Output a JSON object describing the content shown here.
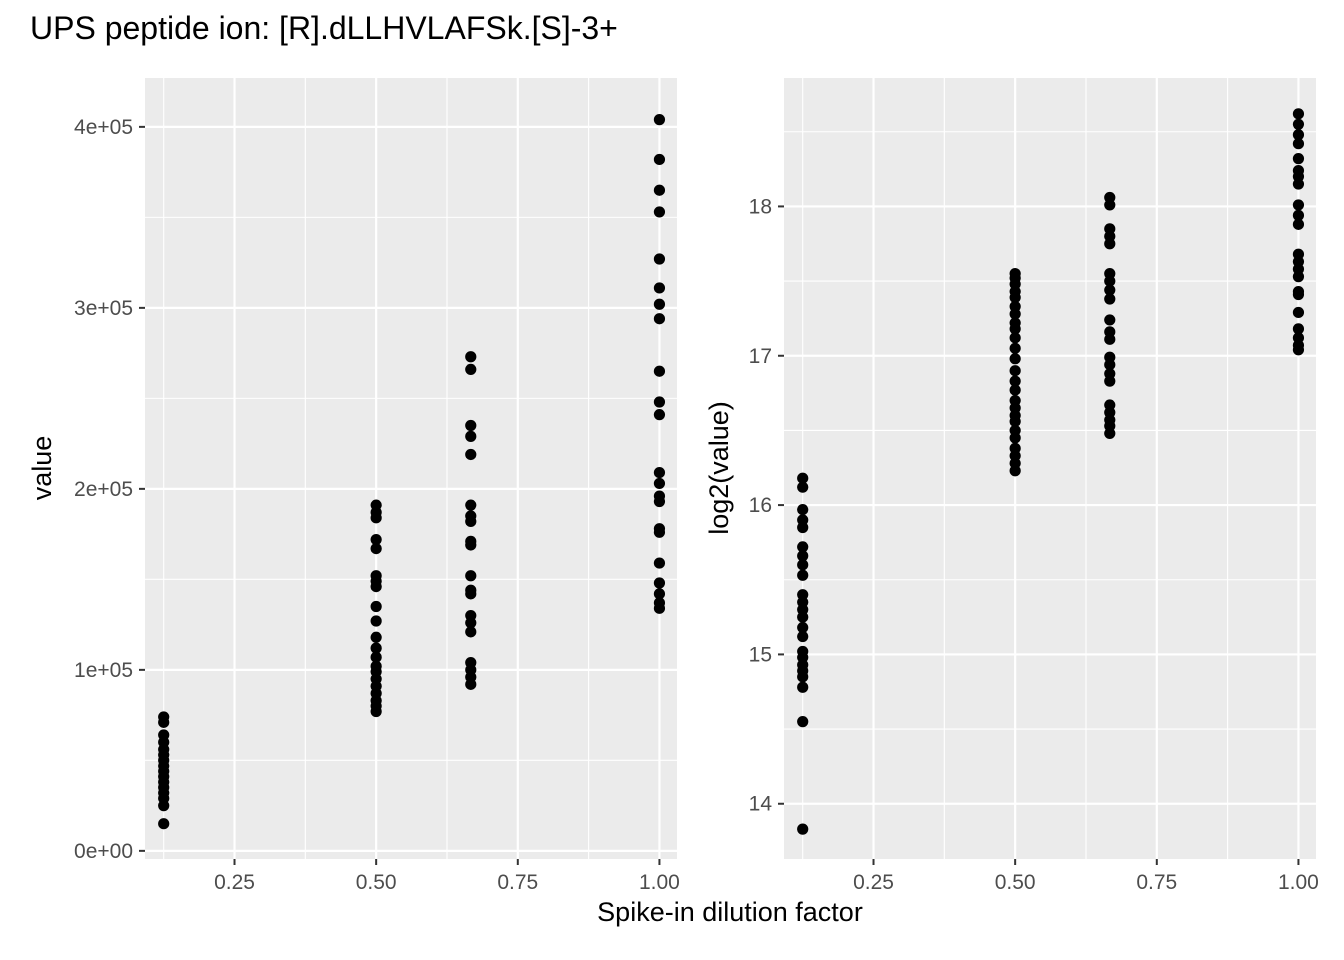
{
  "title": "UPS peptide ion: [R].dLLHVLAFSk.[S]-3+",
  "xlabel": "Spike-in dilution factor",
  "colors": {
    "panel": "#ebebeb",
    "grid": "#ffffff",
    "point": "#000000",
    "tick_text": "#4d4d4d"
  },
  "chart_data": [
    {
      "type": "scatter",
      "title": "",
      "xlabel": "Spike-in dilution factor",
      "ylabel": "value",
      "xlim": [
        0.092,
        1.031
      ],
      "ylim": [
        -4500,
        427000
      ],
      "x_ticks": [
        0.25,
        0.5,
        0.75,
        1.0
      ],
      "x_tick_labels": [
        "0.25",
        "0.50",
        "0.75",
        "1.00"
      ],
      "y_ticks": [
        0,
        100000,
        200000,
        300000,
        400000
      ],
      "y_tick_labels": [
        "0e+00",
        "1e+05",
        "2e+05",
        "3e+05",
        "4e+05"
      ],
      "grid": true,
      "series": [
        {
          "values": [
            [
              0.125,
              74000
            ],
            [
              0.125,
              71000
            ],
            [
              0.125,
              64000
            ],
            [
              0.125,
              60000
            ],
            [
              0.125,
              56000
            ],
            [
              0.125,
              53000
            ],
            [
              0.125,
              50000
            ],
            [
              0.125,
              47000
            ],
            [
              0.125,
              44000
            ],
            [
              0.125,
              41000
            ],
            [
              0.125,
              38000
            ],
            [
              0.125,
              35000
            ],
            [
              0.125,
              32000
            ],
            [
              0.125,
              29000
            ],
            [
              0.125,
              25000
            ],
            [
              0.125,
              15000
            ],
            [
              0.5,
              191000
            ],
            [
              0.5,
              187000
            ],
            [
              0.5,
              184000
            ],
            [
              0.5,
              172000
            ],
            [
              0.5,
              167000
            ],
            [
              0.5,
              152000
            ],
            [
              0.5,
              149000
            ],
            [
              0.5,
              146000
            ],
            [
              0.5,
              135000
            ],
            [
              0.5,
              127000
            ],
            [
              0.5,
              118000
            ],
            [
              0.5,
              112000
            ],
            [
              0.5,
              107000
            ],
            [
              0.5,
              102000
            ],
            [
              0.5,
              99000
            ],
            [
              0.5,
              95000
            ],
            [
              0.5,
              91000
            ],
            [
              0.5,
              87000
            ],
            [
              0.5,
              83000
            ],
            [
              0.5,
              80000
            ],
            [
              0.5,
              77000
            ],
            [
              0.667,
              273000
            ],
            [
              0.667,
              266000
            ],
            [
              0.667,
              235000
            ],
            [
              0.667,
              229000
            ],
            [
              0.667,
              219000
            ],
            [
              0.667,
              191000
            ],
            [
              0.667,
              185000
            ],
            [
              0.667,
              182000
            ],
            [
              0.667,
              171000
            ],
            [
              0.667,
              169000
            ],
            [
              0.667,
              152000
            ],
            [
              0.667,
              144000
            ],
            [
              0.667,
              142000
            ],
            [
              0.667,
              130000
            ],
            [
              0.667,
              126000
            ],
            [
              0.667,
              121000
            ],
            [
              0.667,
              104000
            ],
            [
              0.667,
              100000
            ],
            [
              0.667,
              96000
            ],
            [
              0.667,
              92000
            ],
            [
              1.0,
              404000
            ],
            [
              1.0,
              382000
            ],
            [
              1.0,
              365000
            ],
            [
              1.0,
              353000
            ],
            [
              1.0,
              327000
            ],
            [
              1.0,
              311000
            ],
            [
              1.0,
              302000
            ],
            [
              1.0,
              294000
            ],
            [
              1.0,
              265000
            ],
            [
              1.0,
              248000
            ],
            [
              1.0,
              241000
            ],
            [
              1.0,
              209000
            ],
            [
              1.0,
              203000
            ],
            [
              1.0,
              196000
            ],
            [
              1.0,
              193000
            ],
            [
              1.0,
              178000
            ],
            [
              1.0,
              176000
            ],
            [
              1.0,
              159000
            ],
            [
              1.0,
              148000
            ],
            [
              1.0,
              142000
            ],
            [
              1.0,
              137000
            ],
            [
              1.0,
              134000
            ]
          ]
        }
      ]
    },
    {
      "type": "scatter",
      "title": "",
      "xlabel": "Spike-in dilution factor",
      "ylabel": "log2(value)",
      "xlim": [
        0.092,
        1.031
      ],
      "ylim": [
        13.63,
        18.86
      ],
      "x_ticks": [
        0.25,
        0.5,
        0.75,
        1.0
      ],
      "x_tick_labels": [
        "0.25",
        "0.50",
        "0.75",
        "1.00"
      ],
      "y_ticks": [
        14,
        15,
        16,
        17,
        18
      ],
      "y_tick_labels": [
        "14",
        "15",
        "16",
        "17",
        "18"
      ],
      "grid": true,
      "series": [
        {
          "values": [
            [
              0.125,
              16.18
            ],
            [
              0.125,
              16.12
            ],
            [
              0.125,
              15.97
            ],
            [
              0.125,
              15.9
            ],
            [
              0.125,
              15.85
            ],
            [
              0.125,
              15.72
            ],
            [
              0.125,
              15.66
            ],
            [
              0.125,
              15.6
            ],
            [
              0.125,
              15.53
            ],
            [
              0.125,
              15.4
            ],
            [
              0.125,
              15.35
            ],
            [
              0.125,
              15.3
            ],
            [
              0.125,
              15.25
            ],
            [
              0.125,
              15.18
            ],
            [
              0.125,
              15.12
            ],
            [
              0.125,
              15.02
            ],
            [
              0.125,
              14.98
            ],
            [
              0.125,
              14.93
            ],
            [
              0.125,
              14.89
            ],
            [
              0.125,
              14.85
            ],
            [
              0.125,
              14.78
            ],
            [
              0.125,
              14.55
            ],
            [
              0.125,
              13.83
            ],
            [
              0.5,
              17.55
            ],
            [
              0.5,
              17.52
            ],
            [
              0.5,
              17.48
            ],
            [
              0.5,
              17.43
            ],
            [
              0.5,
              17.39
            ],
            [
              0.5,
              17.33
            ],
            [
              0.5,
              17.28
            ],
            [
              0.5,
              17.22
            ],
            [
              0.5,
              17.18
            ],
            [
              0.5,
              17.12
            ],
            [
              0.5,
              17.05
            ],
            [
              0.5,
              16.98
            ],
            [
              0.5,
              16.9
            ],
            [
              0.5,
              16.83
            ],
            [
              0.5,
              16.77
            ],
            [
              0.5,
              16.7
            ],
            [
              0.5,
              16.65
            ],
            [
              0.5,
              16.6
            ],
            [
              0.5,
              16.56
            ],
            [
              0.5,
              16.5
            ],
            [
              0.5,
              16.45
            ],
            [
              0.5,
              16.38
            ],
            [
              0.5,
              16.33
            ],
            [
              0.5,
              16.28
            ],
            [
              0.5,
              16.23
            ],
            [
              0.667,
              18.06
            ],
            [
              0.667,
              18.01
            ],
            [
              0.667,
              17.85
            ],
            [
              0.667,
              17.8
            ],
            [
              0.667,
              17.75
            ],
            [
              0.667,
              17.55
            ],
            [
              0.667,
              17.5
            ],
            [
              0.667,
              17.44
            ],
            [
              0.667,
              17.38
            ],
            [
              0.667,
              17.24
            ],
            [
              0.667,
              17.16
            ],
            [
              0.667,
              17.11
            ],
            [
              0.667,
              16.99
            ],
            [
              0.667,
              16.94
            ],
            [
              0.667,
              16.88
            ],
            [
              0.667,
              16.83
            ],
            [
              0.667,
              16.67
            ],
            [
              0.667,
              16.62
            ],
            [
              0.667,
              16.57
            ],
            [
              0.667,
              16.53
            ],
            [
              0.667,
              16.48
            ],
            [
              1.0,
              18.62
            ],
            [
              1.0,
              18.55
            ],
            [
              1.0,
              18.48
            ],
            [
              1.0,
              18.42
            ],
            [
              1.0,
              18.32
            ],
            [
              1.0,
              18.24
            ],
            [
              1.0,
              18.2
            ],
            [
              1.0,
              18.15
            ],
            [
              1.0,
              18.01
            ],
            [
              1.0,
              17.94
            ],
            [
              1.0,
              17.88
            ],
            [
              1.0,
              17.68
            ],
            [
              1.0,
              17.63
            ],
            [
              1.0,
              17.58
            ],
            [
              1.0,
              17.53
            ],
            [
              1.0,
              17.43
            ],
            [
              1.0,
              17.41
            ],
            [
              1.0,
              17.29
            ],
            [
              1.0,
              17.18
            ],
            [
              1.0,
              17.12
            ],
            [
              1.0,
              17.07
            ],
            [
              1.0,
              17.04
            ]
          ]
        }
      ]
    }
  ]
}
